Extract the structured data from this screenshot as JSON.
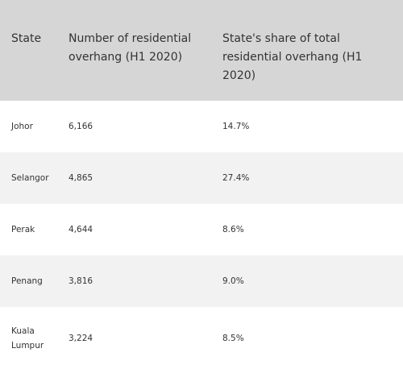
{
  "table": {
    "headers": [
      "State",
      "Number of residential overhang (H1 2020)",
      "State's share of total residential overhang (H1 2020)"
    ],
    "rows": [
      [
        "Johor",
        "6,166",
        "14.7%"
      ],
      [
        "Selangor",
        "4,865",
        "27.4%"
      ],
      [
        "Perak",
        "4,644",
        "8.6%"
      ],
      [
        "Penang",
        "3,816",
        "9.0%"
      ],
      [
        "Kuala Lumpur",
        "3,224",
        "8.5%"
      ]
    ]
  }
}
